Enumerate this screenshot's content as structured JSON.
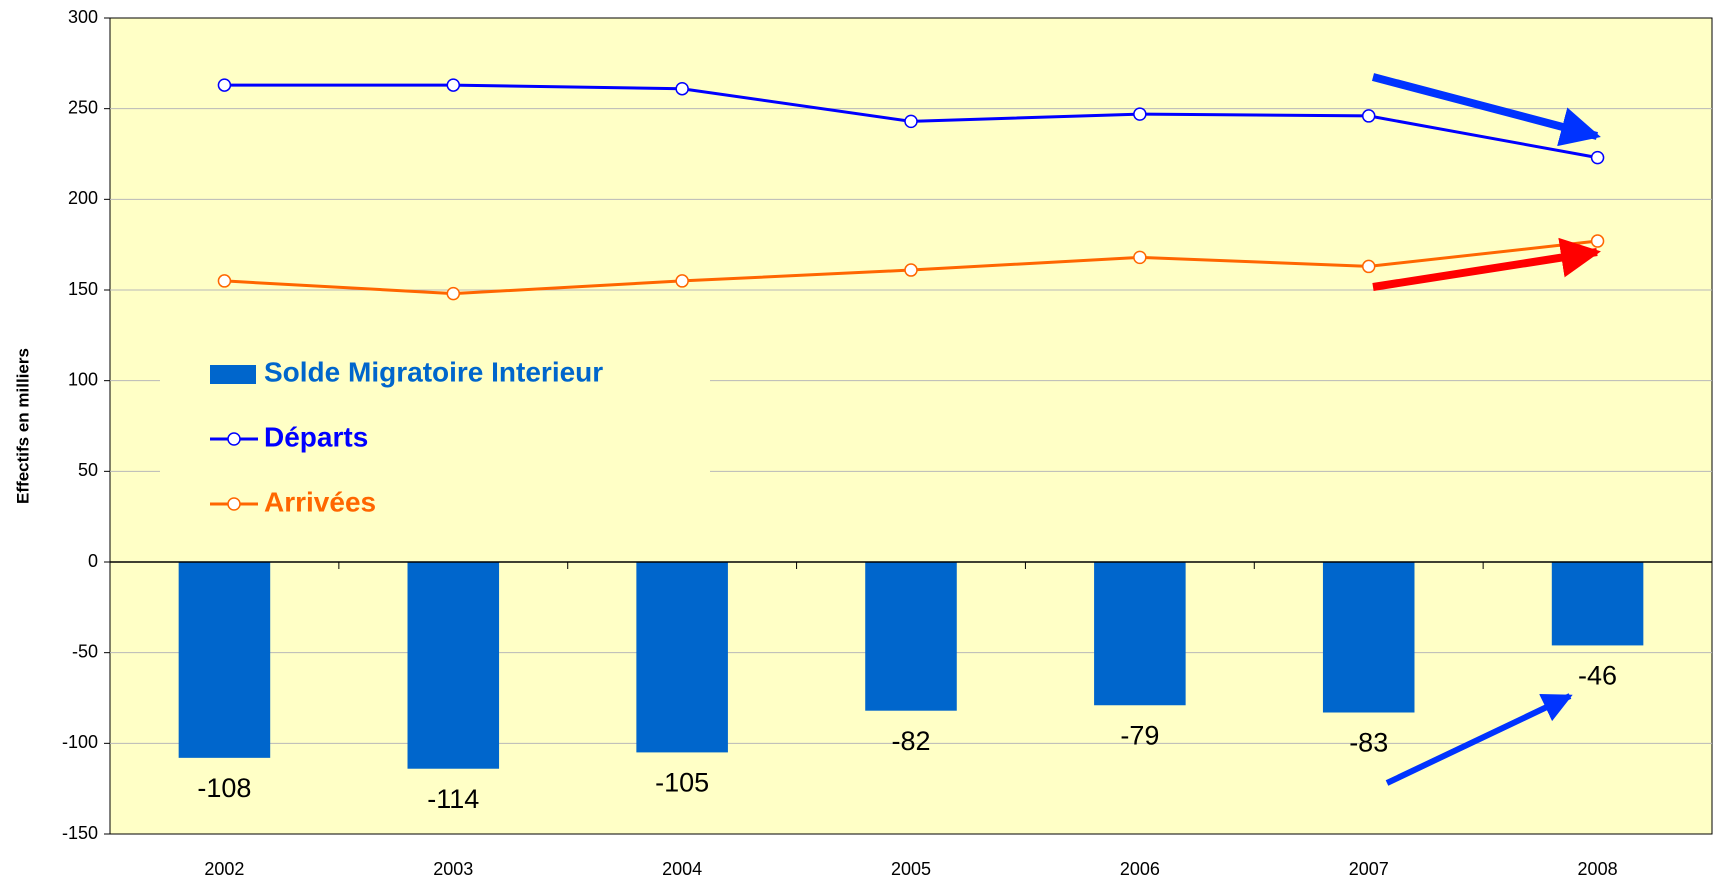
{
  "chart_data": {
    "type": "combo",
    "y_label": "Effectifs en milliers",
    "categories": [
      "2002",
      "2003",
      "2004",
      "2005",
      "2006",
      "2007",
      "2008"
    ],
    "series": [
      {
        "name": "Solde Migratoire Interieur",
        "type": "bar",
        "color": "#0066cc",
        "values": [
          -108,
          -114,
          -105,
          -82,
          -79,
          -83,
          -46
        ]
      },
      {
        "name": "Départs",
        "type": "line",
        "color": "#0000ff",
        "values": [
          263,
          263,
          261,
          243,
          247,
          246,
          223
        ]
      },
      {
        "name": "Arrivées",
        "type": "line",
        "color": "#ff6600",
        "values": [
          155,
          148,
          155,
          161,
          168,
          163,
          177
        ]
      }
    ],
    "ylim": [
      -150,
      300
    ],
    "yticks": [
      -150,
      -100,
      -50,
      0,
      50,
      100,
      150,
      200,
      250,
      300
    ],
    "grid": true,
    "legend": "left"
  }
}
